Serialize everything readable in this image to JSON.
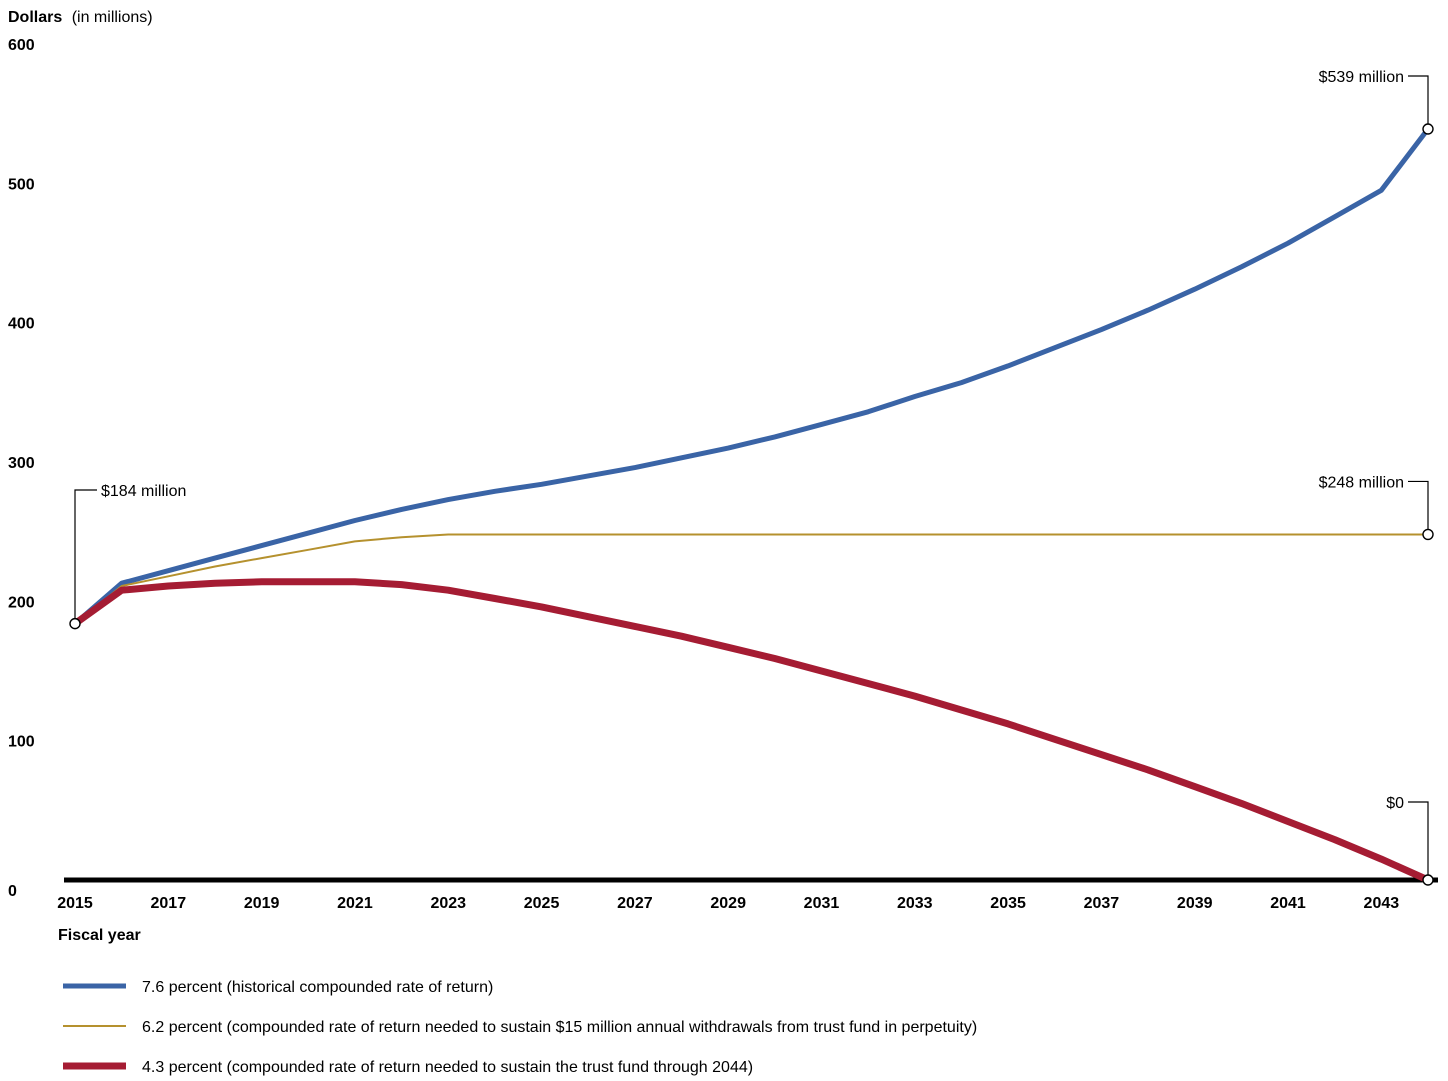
{
  "chart_data": {
    "type": "line",
    "ylabel": "Dollars",
    "ylabel_unit": "(in millions)",
    "xlabel": "Fiscal year",
    "ylim": [
      0,
      600
    ],
    "yticks": [
      0,
      100,
      200,
      300,
      400,
      500,
      600
    ],
    "xlim": [
      2015,
      2044
    ],
    "xticks": [
      2015,
      2017,
      2019,
      2021,
      2023,
      2025,
      2027,
      2029,
      2031,
      2033,
      2035,
      2037,
      2039,
      2041,
      2043
    ],
    "x": [
      2015,
      2016,
      2017,
      2018,
      2019,
      2020,
      2021,
      2022,
      2023,
      2024,
      2025,
      2026,
      2027,
      2028,
      2029,
      2030,
      2031,
      2032,
      2033,
      2034,
      2035,
      2036,
      2037,
      2038,
      2039,
      2040,
      2041,
      2042,
      2043,
      2044
    ],
    "series": [
      {
        "name": "7.6 percent (historical compounded rate of return)",
        "color": "#3a64a6",
        "values": [
          184,
          213,
          222,
          231,
          240,
          249,
          258,
          266,
          273,
          279,
          284,
          290,
          296,
          303,
          310,
          318,
          327,
          336,
          347,
          357,
          369,
          382,
          395,
          409,
          424,
          440,
          457,
          476,
          495,
          539
        ]
      },
      {
        "name": "6.2 percent (compounded rate of return needed to sustain $15 million annual withdrawals from trust fund in perpetuity)",
        "color": "#b5912e",
        "values": [
          184,
          211,
          218,
          225,
          231,
          237,
          243,
          246,
          248,
          248,
          248,
          248,
          248,
          248,
          248,
          248,
          248,
          248,
          248,
          248,
          248,
          248,
          248,
          248,
          248,
          248,
          248,
          248,
          248,
          248
        ]
      },
      {
        "name": "4.3 percent (compounded rate of return needed to sustain the trust fund through 2044)",
        "color": "#a51c33",
        "values": [
          184,
          208,
          211,
          213,
          214,
          214,
          214,
          212,
          208,
          202,
          196,
          189,
          182,
          175,
          167,
          159,
          150,
          141,
          132,
          122,
          112,
          101,
          90,
          79,
          67,
          55,
          42,
          29,
          15,
          0
        ]
      }
    ],
    "annotations": [
      {
        "text": "$184 million",
        "x": 2015,
        "y": 184
      },
      {
        "text": "$539 million",
        "x": 2044,
        "y": 539
      },
      {
        "text": "$248 million",
        "x": 2044,
        "y": 248
      },
      {
        "text": "$0",
        "x": 2044,
        "y": 0
      }
    ],
    "legend_placement": "bottom",
    "grid": false
  }
}
